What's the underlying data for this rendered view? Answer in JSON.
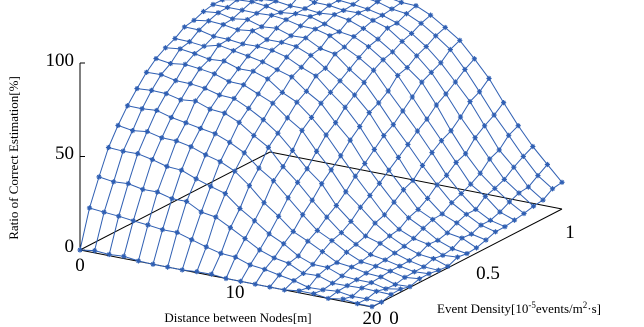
{
  "chart_data": {
    "type": "surface3d",
    "xlabel": "Distance between Nodes[m]",
    "ylabel": "Event Density[10^-5events/m^2·s]",
    "ylabel_parts": {
      "base": "Event Density[10",
      "exp": "-5",
      "mid": "events/m",
      "exp2": "2",
      "tail": "·s]"
    },
    "zlabel": "Ratio of Correct Estimation[%]",
    "x_ticks": [
      "0",
      "10",
      "20"
    ],
    "y_ticks": [
      "0",
      "0.5",
      "1"
    ],
    "z_ticks": [
      "0",
      "50",
      "100"
    ],
    "xlim": [
      0,
      20
    ],
    "ylim": [
      0,
      1.2
    ],
    "zlim": [
      0,
      100
    ],
    "grid_size": [
      21,
      21
    ],
    "colors": {
      "low": "#2f5fb3",
      "high": "#3cb043",
      "peak": "#d9333f",
      "frame": "#000000"
    },
    "color_thresholds": {
      "high": 97,
      "peak": 99.5
    },
    "surface_model": "ratio = 100 * (1 - exp(-3.5*density)) * sigmoid((9 + 6*density - distance)/2.2) + noise"
  }
}
